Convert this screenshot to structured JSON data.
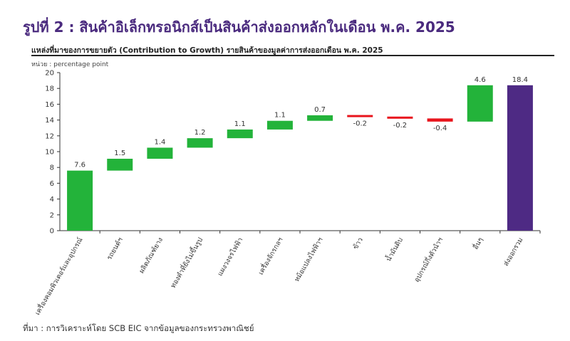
{
  "headline": "รูปที่ 2 : สินค้าอิเล็กทรอนิกส์เป็นสินค้าส่งออกหลักในเดือน พ.ค. 2025",
  "source": "ที่มา : การวิเคราะห์โดย SCB EIC จากข้อมูลของกระทรวงพาณิชย์",
  "colors": {
    "positive": "#23b33a",
    "negative": "#e8141c",
    "total": "#4e2a84",
    "headline": "#4a2a7e"
  },
  "chart_data": {
    "type": "bar",
    "subtype": "waterfall",
    "title": "แหล่งที่มาของการขยายตัว (Contribution to Growth) รายสินค้าของมูลค่าการส่งออกเดือน พ.ค. 2025",
    "ylabel": "หน่วย : percentage point",
    "xlabel": "",
    "ylim": [
      0,
      20
    ],
    "yticks": [
      0,
      2,
      4,
      6,
      8,
      10,
      12,
      14,
      16,
      18,
      20
    ],
    "grid": false,
    "categories": [
      "เครื่องคอมพิวเตอร์และอุปกรณ์",
      "รถยนต์ฯ",
      "ผลิตภัณฑ์ยาง",
      "ทองคำที่ยังไม่ขึ้นรูป",
      "แผงวงจรไฟฟ้า",
      "เครื่องจักรกลฯ",
      "หม้อแปลงไฟฟ้าฯ",
      "ข้าว",
      "น้ำมันดิบ",
      "อุปกรณ์กึ่งตัวนำฯ",
      "อื่นๆ",
      "ส่งออกรวม"
    ],
    "values": [
      7.6,
      1.5,
      1.4,
      1.2,
      1.1,
      1.1,
      0.7,
      -0.2,
      -0.2,
      -0.4,
      4.6,
      18.4
    ],
    "labels": [
      "7.6",
      "1.5",
      "1.4",
      "1.2",
      "1.1",
      "1.1",
      "0.7",
      "-0.2",
      "-0.2",
      "-0.4",
      "4.6",
      "18.4"
    ],
    "total_index": 11
  }
}
